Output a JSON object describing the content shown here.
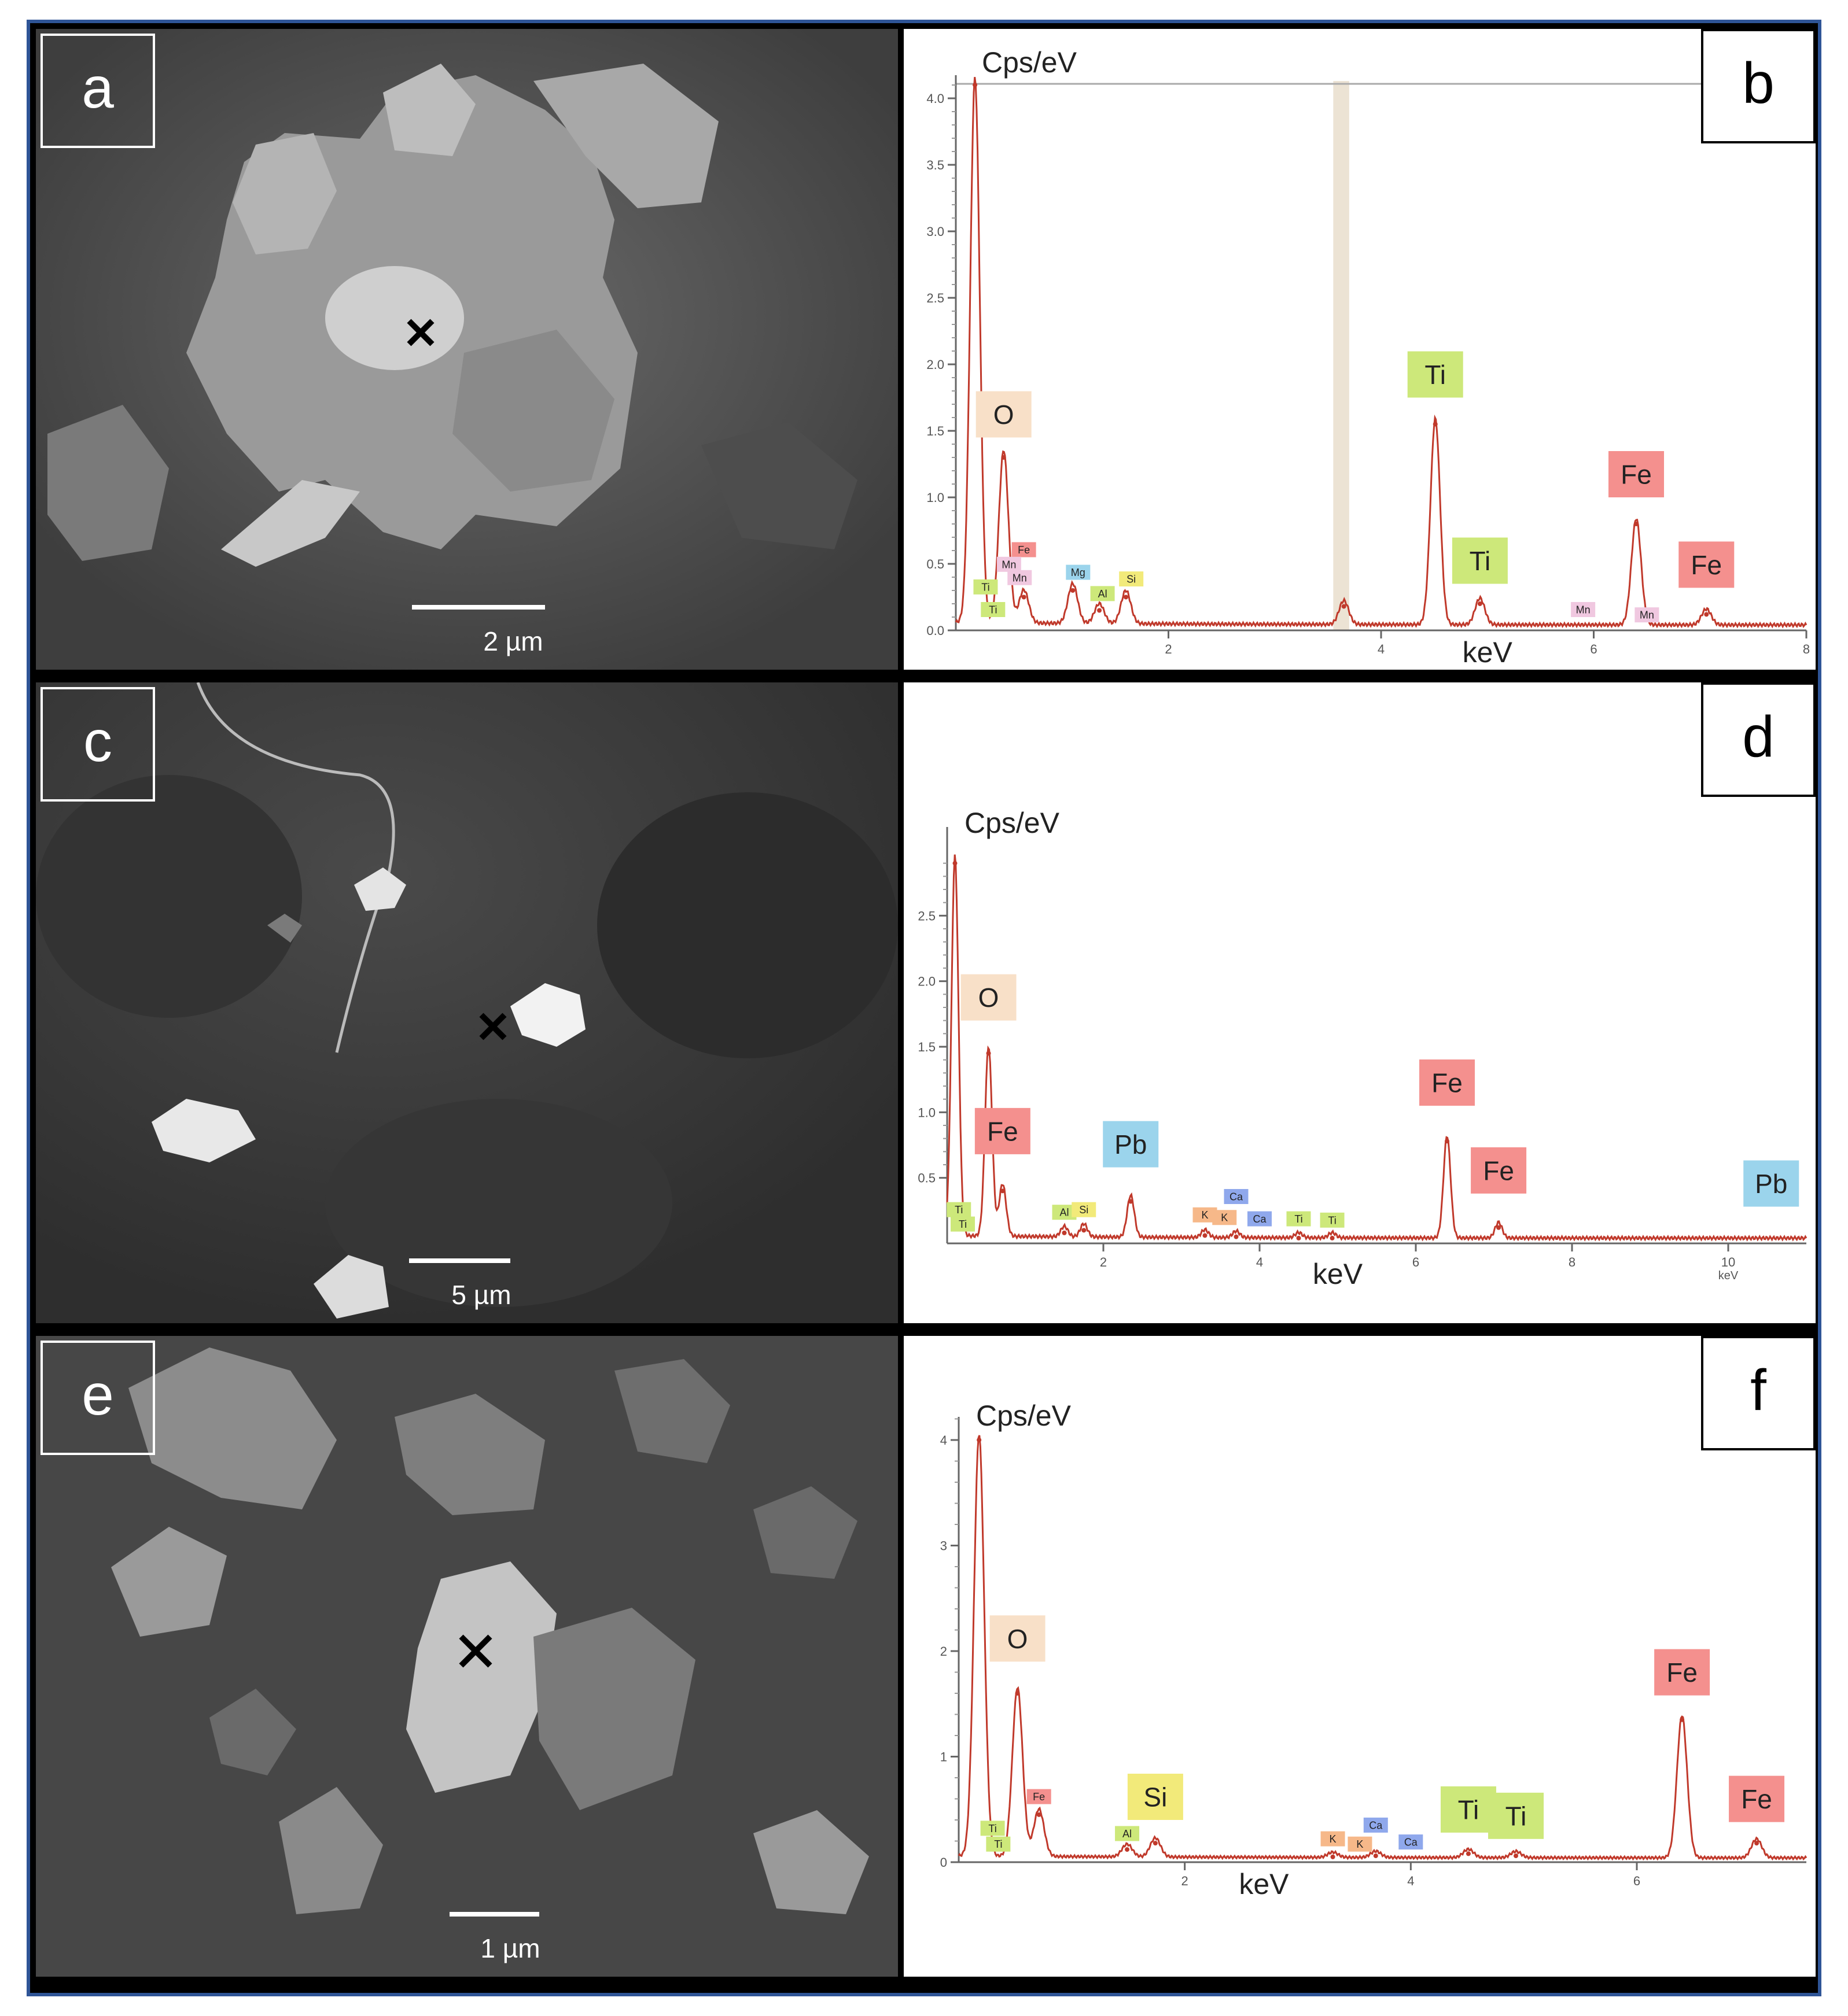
{
  "panels": {
    "a": {
      "letter": "a",
      "scale_bar": "2 µm"
    },
    "b": {
      "letter": "b"
    },
    "c": {
      "letter": "c",
      "scale_bar": "5 µm"
    },
    "d": {
      "letter": "d"
    },
    "e": {
      "letter": "e",
      "scale_bar": "1 µm"
    },
    "f": {
      "letter": "f"
    }
  },
  "chart_data": [
    {
      "panel": "b",
      "type": "line",
      "ylabel": "Cps/eV",
      "xlabel": "keV",
      "xlim": [
        0,
        8
      ],
      "ylim": [
        0,
        4.0
      ],
      "x_ticks": [
        2,
        4,
        6,
        8
      ],
      "y_ticks": [
        0.0,
        0.5,
        1.0,
        1.5,
        2.0,
        2.5,
        3.0,
        3.5,
        4.0
      ],
      "y_tick_labels": [
        "0.0",
        "0.5",
        "1.0",
        "1.5",
        "2.0",
        "2.5",
        "3.0",
        "3.5",
        "4.0"
      ],
      "peaks": [
        {
          "x": 0.18,
          "y": 4.1
        },
        {
          "x": 0.45,
          "y": 1.3
        },
        {
          "x": 0.64,
          "y": 0.25
        },
        {
          "x": 1.1,
          "y": 0.3
        },
        {
          "x": 1.35,
          "y": 0.15
        },
        {
          "x": 1.6,
          "y": 0.25
        },
        {
          "x": 3.65,
          "y": 0.18
        },
        {
          "x": 4.51,
          "y": 1.55
        },
        {
          "x": 4.93,
          "y": 0.2
        },
        {
          "x": 6.4,
          "y": 0.8
        },
        {
          "x": 7.06,
          "y": 0.12
        }
      ],
      "labels": [
        {
          "text": "O",
          "x": 0.45,
          "y": 1.45,
          "color": "#f8e0c8",
          "size": "large"
        },
        {
          "text": "Ti",
          "x": 4.51,
          "y": 1.75,
          "color": "#cde87a",
          "size": "large"
        },
        {
          "text": "Ti",
          "x": 4.93,
          "y": 0.35,
          "color": "#cde87a",
          "size": "large"
        },
        {
          "text": "Fe",
          "x": 6.4,
          "y": 1.0,
          "color": "#f4908e",
          "size": "large"
        },
        {
          "text": "Fe",
          "x": 7.06,
          "y": 0.32,
          "color": "#f4908e",
          "size": "large"
        },
        {
          "text": "Fe",
          "x": 0.64,
          "y": 0.55,
          "color": "#f4908e",
          "size": "small"
        },
        {
          "text": "Mn",
          "x": 0.5,
          "y": 0.44,
          "color": "#f0c8e0",
          "size": "small"
        },
        {
          "text": "Mn",
          "x": 0.6,
          "y": 0.34,
          "color": "#f0c8e0",
          "size": "small"
        },
        {
          "text": "Ti",
          "x": 0.28,
          "y": 0.27,
          "color": "#cde87a",
          "size": "small"
        },
        {
          "text": "Ti",
          "x": 0.35,
          "y": 0.1,
          "color": "#cde87a",
          "size": "small"
        },
        {
          "text": "Mg",
          "x": 1.15,
          "y": 0.38,
          "color": "#9bd4ec",
          "size": "small"
        },
        {
          "text": "Al",
          "x": 1.38,
          "y": 0.22,
          "color": "#cde87a",
          "size": "small"
        },
        {
          "text": "Si",
          "x": 1.65,
          "y": 0.33,
          "color": "#f2ea7a",
          "size": "small"
        },
        {
          "text": "Mn",
          "x": 5.9,
          "y": 0.1,
          "color": "#f0c8e0",
          "size": "small"
        },
        {
          "text": "Mn",
          "x": 6.5,
          "y": 0.06,
          "color": "#f0c8e0",
          "size": "small"
        }
      ]
    },
    {
      "panel": "d",
      "type": "line",
      "ylabel": "Cps/eV",
      "xlabel": "keV",
      "xlim": [
        0,
        11
      ],
      "ylim": [
        0,
        3.0
      ],
      "x_ticks": [
        2,
        4,
        6,
        8,
        10
      ],
      "y_ticks": [
        0.5,
        1.0,
        1.5,
        2.0,
        2.5
      ],
      "y_tick_labels": [
        "0.5",
        "1.0",
        "1.5",
        "2.0",
        "2.5"
      ],
      "x_tick_labels": [
        "2",
        "4",
        "6",
        "8",
        "10"
      ],
      "x_end_unit": "keV",
      "peaks": [
        {
          "x": 0.1,
          "y": 2.9
        },
        {
          "x": 0.53,
          "y": 1.45
        },
        {
          "x": 0.71,
          "y": 0.4
        },
        {
          "x": 1.5,
          "y": 0.08
        },
        {
          "x": 1.75,
          "y": 0.1
        },
        {
          "x": 2.35,
          "y": 0.32
        },
        {
          "x": 3.3,
          "y": 0.06
        },
        {
          "x": 3.7,
          "y": 0.05
        },
        {
          "x": 4.5,
          "y": 0.04
        },
        {
          "x": 4.93,
          "y": 0.04
        },
        {
          "x": 6.4,
          "y": 0.78
        },
        {
          "x": 7.06,
          "y": 0.12
        }
      ],
      "labels": [
        {
          "text": "O",
          "x": 0.53,
          "y": 1.7,
          "color": "#f8e0c8",
          "size": "large"
        },
        {
          "text": "Fe",
          "x": 0.71,
          "y": 0.68,
          "color": "#f4908e",
          "size": "large"
        },
        {
          "text": "Pb",
          "x": 2.35,
          "y": 0.58,
          "color": "#9bd4ec",
          "size": "large"
        },
        {
          "text": "Fe",
          "x": 6.4,
          "y": 1.05,
          "color": "#f4908e",
          "size": "large"
        },
        {
          "text": "Fe",
          "x": 7.06,
          "y": 0.38,
          "color": "#f4908e",
          "size": "large"
        },
        {
          "text": "Pb",
          "x": 10.55,
          "y": 0.28,
          "color": "#9bd4ec",
          "size": "large"
        },
        {
          "text": "Ti",
          "x": 0.15,
          "y": 0.2,
          "color": "#cde87a",
          "size": "small"
        },
        {
          "text": "Ti",
          "x": 0.2,
          "y": 0.09,
          "color": "#cde87a",
          "size": "small"
        },
        {
          "text": "Al",
          "x": 1.5,
          "y": 0.18,
          "color": "#cde87a",
          "size": "small"
        },
        {
          "text": "Si",
          "x": 1.75,
          "y": 0.2,
          "color": "#f2ea7a",
          "size": "small"
        },
        {
          "text": "K",
          "x": 3.3,
          "y": 0.16,
          "color": "#f6b889",
          "size": "small"
        },
        {
          "text": "K",
          "x": 3.55,
          "y": 0.14,
          "color": "#f6b889",
          "size": "small"
        },
        {
          "text": "Ca",
          "x": 3.7,
          "y": 0.3,
          "color": "#8fa8ec",
          "size": "small"
        },
        {
          "text": "Ca",
          "x": 4.0,
          "y": 0.13,
          "color": "#8fa8ec",
          "size": "small"
        },
        {
          "text": "Ti",
          "x": 4.5,
          "y": 0.13,
          "color": "#cde87a",
          "size": "small"
        },
        {
          "text": "Ti",
          "x": 4.93,
          "y": 0.12,
          "color": "#cde87a",
          "size": "small"
        }
      ]
    },
    {
      "panel": "f",
      "type": "line",
      "ylabel": "Cps/eV",
      "xlabel": "keV",
      "xlim": [
        0,
        7.5
      ],
      "ylim": [
        0,
        4.0
      ],
      "x_ticks": [
        2,
        4,
        6
      ],
      "y_ticks": [
        0,
        1,
        2,
        3,
        4
      ],
      "y_tick_labels": [
        "0",
        "1",
        "2",
        "3",
        "4"
      ],
      "peaks": [
        {
          "x": 0.18,
          "y": 4.0
        },
        {
          "x": 0.52,
          "y": 1.6
        },
        {
          "x": 0.71,
          "y": 0.45
        },
        {
          "x": 1.49,
          "y": 0.12
        },
        {
          "x": 1.74,
          "y": 0.18
        },
        {
          "x": 3.31,
          "y": 0.05
        },
        {
          "x": 3.69,
          "y": 0.06
        },
        {
          "x": 4.51,
          "y": 0.08
        },
        {
          "x": 4.93,
          "y": 0.06
        },
        {
          "x": 6.4,
          "y": 1.35
        },
        {
          "x": 7.06,
          "y": 0.18
        }
      ],
      "labels": [
        {
          "text": "O",
          "x": 0.52,
          "y": 1.9,
          "color": "#f8e0c8",
          "size": "large"
        },
        {
          "text": "Si",
          "x": 1.74,
          "y": 0.4,
          "color": "#f2ea7a",
          "size": "large"
        },
        {
          "text": "Ti",
          "x": 4.51,
          "y": 0.28,
          "color": "#cde87a",
          "size": "large"
        },
        {
          "text": "Ti",
          "x": 4.93,
          "y": 0.22,
          "color": "#cde87a",
          "size": "large"
        },
        {
          "text": "Fe",
          "x": 6.4,
          "y": 1.58,
          "color": "#f4908e",
          "size": "large"
        },
        {
          "text": "Fe",
          "x": 7.06,
          "y": 0.38,
          "color": "#f4908e",
          "size": "large"
        },
        {
          "text": "Fe",
          "x": 0.71,
          "y": 0.55,
          "color": "#f4908e",
          "size": "small"
        },
        {
          "text": "Ti",
          "x": 0.3,
          "y": 0.25,
          "color": "#cde87a",
          "size": "small"
        },
        {
          "text": "Ti",
          "x": 0.35,
          "y": 0.1,
          "color": "#cde87a",
          "size": "small"
        },
        {
          "text": "Al",
          "x": 1.49,
          "y": 0.2,
          "color": "#cde87a",
          "size": "small"
        },
        {
          "text": "K",
          "x": 3.31,
          "y": 0.15,
          "color": "#f6b889",
          "size": "small"
        },
        {
          "text": "K",
          "x": 3.55,
          "y": 0.1,
          "color": "#f6b889",
          "size": "small"
        },
        {
          "text": "Ca",
          "x": 3.69,
          "y": 0.28,
          "color": "#8fa8ec",
          "size": "small"
        },
        {
          "text": "Ca",
          "x": 4.0,
          "y": 0.12,
          "color": "#8fa8ec",
          "size": "small"
        }
      ]
    }
  ]
}
